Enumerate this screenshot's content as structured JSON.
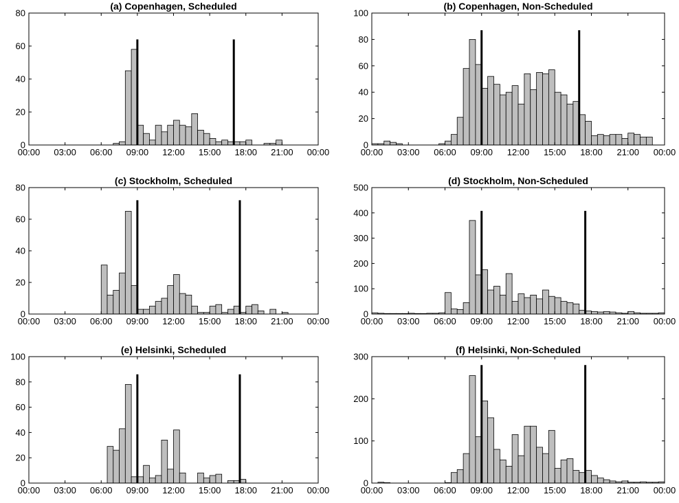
{
  "chart_data": [
    {
      "type": "bar",
      "title": "(a) Copenhagen, Scheduled",
      "x_tick_labels": [
        "00:00",
        "03:00",
        "06:00",
        "09:00",
        "12:00",
        "15:00",
        "18:00",
        "21:00",
        "00:00"
      ],
      "ylim": [
        0,
        80
      ],
      "y_ticks": [
        0,
        20,
        40,
        60,
        80
      ],
      "bin_width_minutes": 30,
      "values": [
        0,
        0,
        0,
        0,
        0,
        0,
        0,
        0,
        0,
        0,
        0,
        0,
        0,
        0,
        1,
        2,
        45,
        58,
        12,
        7,
        3,
        12,
        8,
        12,
        15,
        12,
        11,
        19,
        9,
        7,
        4,
        2,
        3,
        2,
        2,
        2,
        3,
        0,
        0,
        1,
        1,
        3,
        0,
        0,
        0,
        0,
        0,
        0
      ],
      "vlines": [
        "09:00",
        "17:00"
      ],
      "vline_height": 64,
      "bar_color": "#bebebe"
    },
    {
      "type": "bar",
      "title": "(b) Copenhagen, Non-Scheduled",
      "x_tick_labels": [
        "00:00",
        "03:00",
        "06:00",
        "09:00",
        "12:00",
        "15:00",
        "18:00",
        "21:00",
        "00:00"
      ],
      "ylim": [
        0,
        100
      ],
      "y_ticks": [
        0,
        20,
        40,
        60,
        80,
        100
      ],
      "bin_width_minutes": 30,
      "values": [
        1,
        1,
        3,
        2,
        1,
        0,
        0,
        0,
        0,
        0,
        0,
        1,
        3,
        8,
        21,
        58,
        80,
        61,
        43,
        52,
        46,
        38,
        40,
        45,
        31,
        54,
        42,
        55,
        54,
        57,
        40,
        38,
        31,
        33,
        23,
        18,
        7,
        8,
        7,
        8,
        8,
        5,
        9,
        8,
        6,
        6,
        0,
        0
      ],
      "vlines": [
        "09:00",
        "17:00"
      ],
      "vline_height": 87,
      "bar_color": "#bebebe"
    },
    {
      "type": "bar",
      "title": "(c) Stockholm, Scheduled",
      "x_tick_labels": [
        "00:00",
        "03:00",
        "06:00",
        "09:00",
        "12:00",
        "15:00",
        "18:00",
        "21:00",
        "00:00"
      ],
      "ylim": [
        0,
        80
      ],
      "y_ticks": [
        0,
        20,
        40,
        60,
        80
      ],
      "bin_width_minutes": 30,
      "values": [
        0,
        0,
        0,
        0,
        0,
        0,
        0,
        0,
        0,
        0,
        0,
        0,
        31,
        12,
        15,
        26,
        65,
        18,
        3,
        3,
        5,
        8,
        10,
        18,
        25,
        13,
        12,
        5,
        1,
        1,
        5,
        6,
        1,
        3,
        5,
        1,
        5,
        6,
        2,
        0,
        3,
        0,
        1,
        0,
        0,
        0,
        0,
        0
      ],
      "vlines": [
        "09:00",
        "17:30"
      ],
      "vline_height": 72,
      "bar_color": "#bebebe"
    },
    {
      "type": "bar",
      "title": "(d) Stockholm, Non-Scheduled",
      "x_tick_labels": [
        "00:00",
        "03:00",
        "06:00",
        "09:00",
        "12:00",
        "15:00",
        "18:00",
        "21:00",
        "00:00"
      ],
      "ylim": [
        0,
        500
      ],
      "y_ticks": [
        0,
        100,
        200,
        300,
        400,
        500
      ],
      "bin_width_minutes": 30,
      "values": [
        5,
        3,
        2,
        2,
        2,
        2,
        3,
        2,
        2,
        3,
        3,
        5,
        85,
        20,
        18,
        45,
        370,
        155,
        175,
        95,
        110,
        75,
        160,
        50,
        80,
        65,
        75,
        60,
        95,
        70,
        65,
        50,
        45,
        40,
        15,
        12,
        10,
        8,
        10,
        8,
        5,
        3,
        10,
        5,
        3,
        3,
        3,
        5
      ],
      "vlines": [
        "09:00",
        "17:30"
      ],
      "vline_height": 408,
      "bar_color": "#bebebe"
    },
    {
      "type": "bar",
      "title": "(e) Helsinki, Scheduled",
      "x_tick_labels": [
        "00:00",
        "03:00",
        "06:00",
        "09:00",
        "12:00",
        "15:00",
        "18:00",
        "21:00",
        "00:00"
      ],
      "ylim": [
        0,
        100
      ],
      "y_ticks": [
        0,
        20,
        40,
        60,
        80,
        100
      ],
      "bin_width_minutes": 30,
      "values": [
        0,
        0,
        0,
        0,
        0,
        0,
        0,
        0,
        0,
        0,
        0,
        0,
        0,
        29,
        26,
        43,
        78,
        5,
        5,
        14,
        4,
        6,
        34,
        11,
        42,
        8,
        0,
        0,
        8,
        4,
        6,
        7,
        0,
        2,
        2,
        3,
        0,
        0,
        0,
        0,
        0,
        0,
        0,
        0,
        0,
        0,
        0,
        0
      ],
      "vlines": [
        "09:00",
        "17:30"
      ],
      "vline_height": 86,
      "bar_color": "#bebebe"
    },
    {
      "type": "bar",
      "title": "(f) Helsinki, Non-Scheduled",
      "x_tick_labels": [
        "00:00",
        "03:00",
        "06:00",
        "09:00",
        "12:00",
        "15:00",
        "18:00",
        "21:00",
        "00:00"
      ],
      "ylim": [
        0,
        300
      ],
      "y_ticks": [
        0,
        100,
        200,
        300
      ],
      "bin_width_minutes": 30,
      "values": [
        0,
        2,
        1,
        0,
        0,
        0,
        0,
        0,
        0,
        0,
        0,
        0,
        1,
        25,
        32,
        70,
        255,
        110,
        195,
        155,
        80,
        55,
        40,
        115,
        65,
        135,
        135,
        85,
        70,
        125,
        35,
        55,
        58,
        30,
        25,
        30,
        18,
        12,
        8,
        5,
        3,
        5,
        2,
        2,
        3,
        2,
        2,
        3
      ],
      "vlines": [
        "09:00",
        "17:30"
      ],
      "vline_height": 280,
      "bar_color": "#bebebe"
    }
  ]
}
